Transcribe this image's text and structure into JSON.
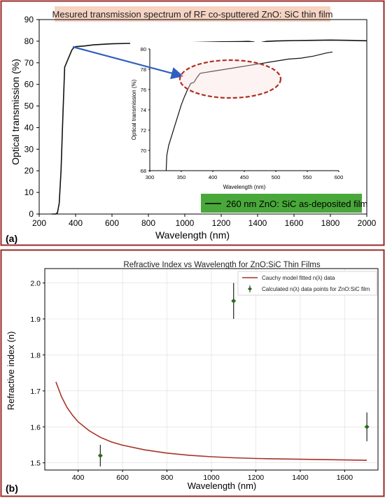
{
  "colors": {
    "panel_border": "#9a2a2a",
    "title_background": "#f6d3c2",
    "highlight_ellipse": "#b03020",
    "arrow": "#2f5fbf",
    "legend_box": "#49a83a",
    "cauchy_line": "#a83228",
    "data_points": "#2e6b1f"
  },
  "chart_data": [
    {
      "panel_label": "(a)",
      "type": "line",
      "title": "Mesured transmission spectrum of RF co-sputtered ZnO: SiC thin film",
      "xlabel": "Wavelength (nm)",
      "ylabel": "Optical transmission (%)",
      "xlim": [
        200,
        2000
      ],
      "ylim": [
        0,
        90
      ],
      "x_ticks": [
        "200",
        "400",
        "600",
        "800",
        "1000",
        "1200",
        "1400",
        "1600",
        "1800",
        "2000"
      ],
      "y_ticks": [
        "0",
        "10",
        "20",
        "30",
        "40",
        "50",
        "60",
        "70",
        "80",
        "90"
      ],
      "grid": false,
      "legend_position": "bottom-right",
      "series": [
        {
          "name": "260 nm ZnO: SiC  as-deposited film",
          "x": [
            270,
            290,
            300,
            310,
            320,
            330,
            340,
            350,
            360,
            370,
            380,
            390,
            400,
            420,
            450,
            500,
            600,
            700,
            800,
            900,
            1000,
            1100,
            1200,
            1300,
            1350,
            1380,
            1400,
            1420,
            1450,
            1500,
            1600,
            1700,
            1800,
            1900,
            2000
          ],
          "y": [
            0,
            0,
            0.5,
            5,
            20,
            45,
            68,
            70,
            72,
            74,
            76,
            77,
            77.5,
            77.6,
            77.8,
            78.3,
            78.8,
            79,
            79,
            79.2,
            79.3,
            79.5,
            79.7,
            79.8,
            79.9,
            79.6,
            78.7,
            79.4,
            79.9,
            80.1,
            80.3,
            80.4,
            80.5,
            80.4,
            80.2
          ]
        }
      ],
      "inset": {
        "type": "line",
        "xlabel": "Wavelength (nm)",
        "ylabel": "Optical transmission (%)",
        "xlim": [
          300,
          600
        ],
        "ylim": [
          68,
          80
        ],
        "x_ticks": [
          "300",
          "350",
          "400",
          "450",
          "500",
          "550",
          "600"
        ],
        "y_ticks": [
          "68",
          "70",
          "72",
          "74",
          "76",
          "78",
          "80"
        ],
        "series": [
          {
            "x": [
              326,
              327,
              330,
              335,
              340,
              345,
              350,
              355,
              360,
              365,
              370,
              375,
              380,
              390,
              400,
              420,
              440,
              460,
              480,
              500,
              520,
              540,
              560,
              580,
              590
            ],
            "y": [
              68,
              69.5,
              70.5,
              71.5,
              72.5,
              73.5,
              74.5,
              75.3,
              76,
              76.6,
              76.7,
              77.2,
              77.6,
              77.7,
              77.8,
              78,
              78.2,
              78.4,
              78.6,
              78.8,
              79,
              79.1,
              79.3,
              79.6,
              79.7
            ]
          }
        ]
      }
    },
    {
      "panel_label": "(b)",
      "type": "line",
      "title": "Refractive Index vs Wavelength for ZnO:SiC Thin Films",
      "xlabel": "Wavelength (nm)",
      "ylabel": "Refractive index  (n)",
      "xlim": [
        250,
        1750
      ],
      "ylim": [
        1.48,
        2.04
      ],
      "x_ticks": [
        "400",
        "600",
        "800",
        "1000",
        "1200",
        "1400",
        "1600"
      ],
      "y_ticks": [
        "1.5",
        "1.6",
        "1.7",
        "1.8",
        "1.9",
        "2.0"
      ],
      "grid": true,
      "legend_position": "top-right",
      "series": [
        {
          "name": "Cauchy model fitted n(λ) data",
          "x": [
            300,
            325,
            350,
            375,
            400,
            450,
            500,
            550,
            600,
            700,
            800,
            900,
            1000,
            1100,
            1200,
            1300,
            1400,
            1500,
            1600,
            1700
          ],
          "y": [
            1.725,
            1.684,
            1.654,
            1.632,
            1.614,
            1.589,
            1.571,
            1.558,
            1.549,
            1.536,
            1.527,
            1.521,
            1.517,
            1.514,
            1.512,
            1.511,
            1.51,
            1.509,
            1.508,
            1.507
          ]
        },
        {
          "name": "Calculated n(λ) data points for ZnO:SiC film",
          "x": [
            500,
            1100,
            1700
          ],
          "y": [
            1.52,
            1.95,
            1.6
          ],
          "yerr": [
            0.03,
            0.05,
            0.04
          ]
        }
      ]
    }
  ]
}
